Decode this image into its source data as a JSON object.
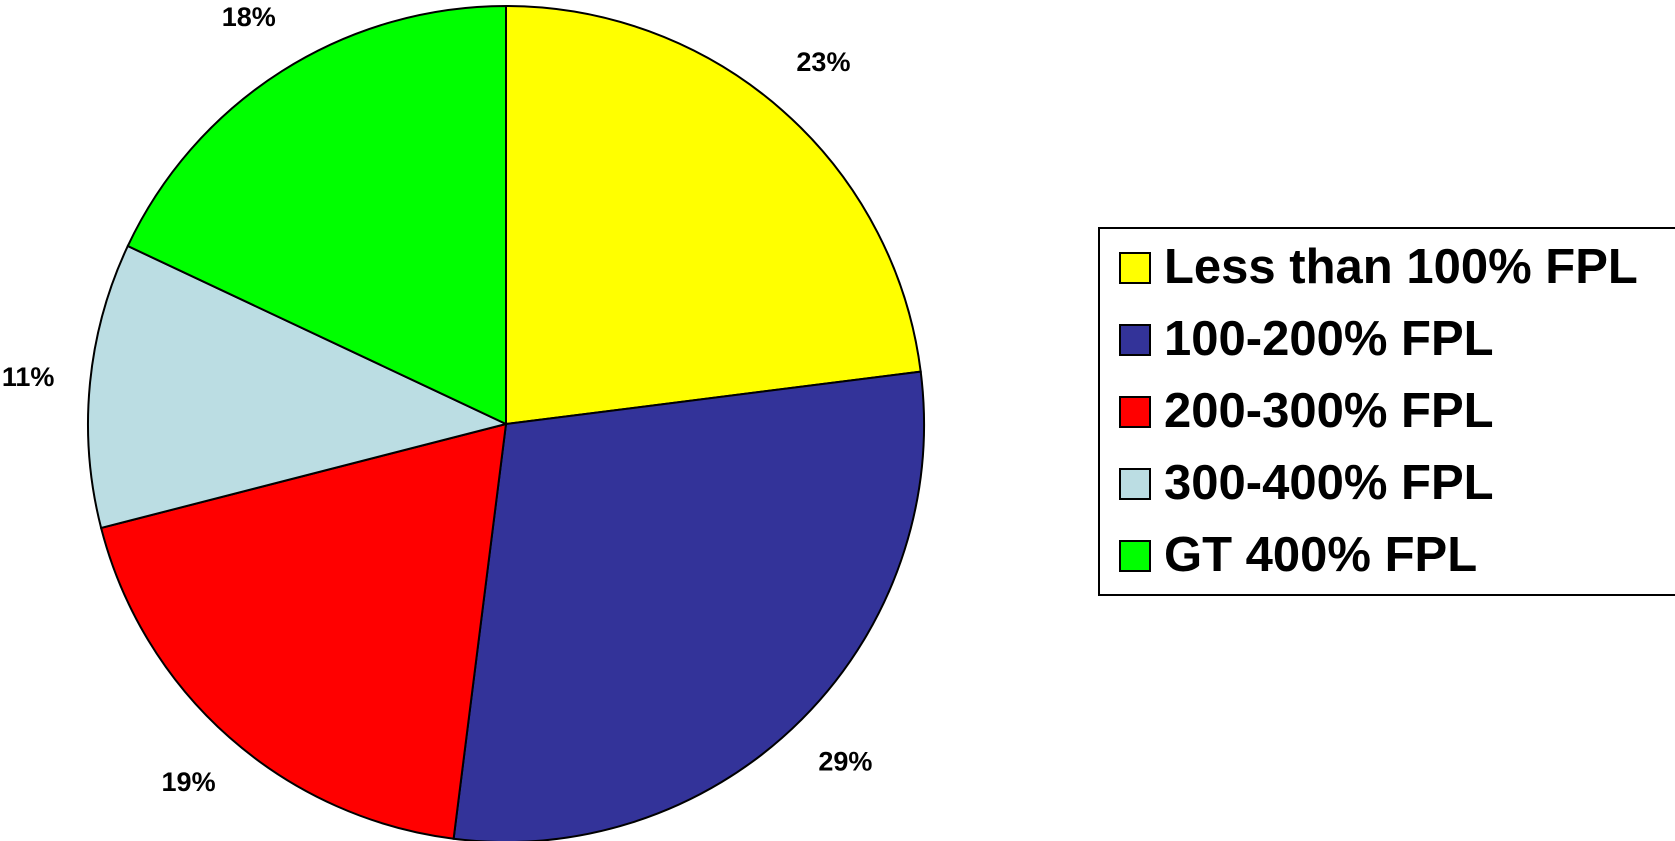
{
  "chart_data": {
    "type": "pie",
    "categories": [
      "Less than 100% FPL",
      "100-200% FPL",
      "200-300% FPL",
      "300-400% FPL",
      "GT 400% FPL"
    ],
    "values": [
      23,
      29,
      19,
      11,
      18
    ],
    "value_labels": [
      "23%",
      "29%",
      "19%",
      "11%",
      "18%"
    ],
    "colors": [
      "#ffff00",
      "#333399",
      "#ff0000",
      "#bbdde3",
      "#00ff00"
    ],
    "legend": "right"
  }
}
